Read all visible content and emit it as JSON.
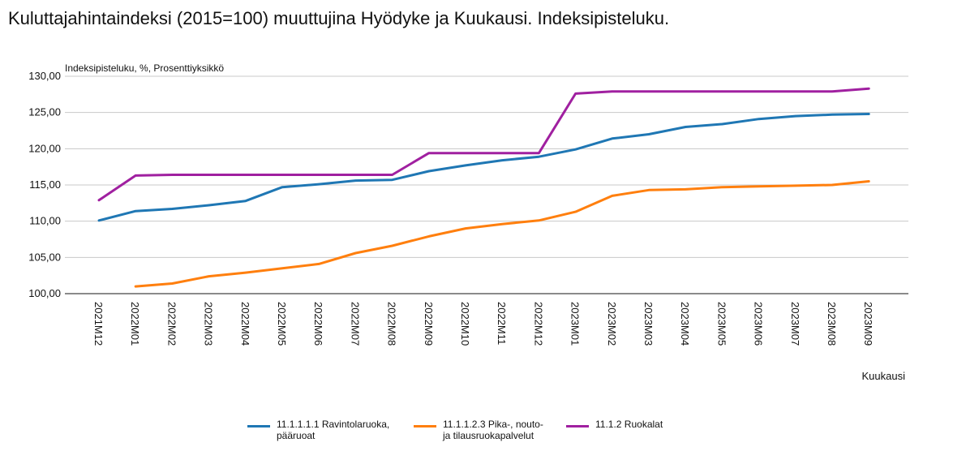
{
  "title": "Kuluttajahintaindeksi (2015=100) muuttujina Hyödyke ja Kuukausi. Indeksipisteluku.",
  "chart_data": {
    "type": "line",
    "ylabel": "Indeksipisteluku, %, Prosenttiyksikkö",
    "xlabel": "Kuukausi",
    "ylim": [
      100,
      130
    ],
    "yticks": [
      100,
      105,
      110,
      115,
      120,
      125,
      130
    ],
    "ytick_labels": [
      "100,00",
      "105,00",
      "110,00",
      "115,00",
      "120,00",
      "125,00",
      "130,00"
    ],
    "grid": true,
    "legend_position": "bottom",
    "categories": [
      "2021M12",
      "2022M01",
      "2022M02",
      "2022M03",
      "2022M04",
      "2022M05",
      "2022M06",
      "2022M07",
      "2022M08",
      "2022M09",
      "2022M10",
      "2022M11",
      "2022M12",
      "2023M01",
      "2023M02",
      "2023M03",
      "2023M04",
      "2023M05",
      "2023M06",
      "2023M07",
      "2023M08",
      "2023M09"
    ],
    "series": [
      {
        "name": "11.1.1.1.1 Ravintolaruoka, pääruoat",
        "legend_lines": [
          "11.1.1.1.1 Ravintolaruoka,",
          "pääruoat"
        ],
        "color": "#1f77b4",
        "values": [
          110.1,
          111.4,
          111.7,
          112.2,
          112.8,
          114.7,
          115.1,
          115.6,
          115.7,
          116.9,
          117.7,
          118.4,
          118.9,
          119.9,
          121.4,
          122.0,
          123.0,
          123.4,
          124.1,
          124.5,
          124.7,
          124.8
        ]
      },
      {
        "name": "11.1.1.2.3 Pika-, nouto- ja tilausruokapalvelut",
        "legend_lines": [
          "11.1.1.2.3 Pika-, nouto-",
          "ja tilausruokapalvelut"
        ],
        "color": "#ff7f0e",
        "values": [
          null,
          101.0,
          101.4,
          102.4,
          102.9,
          103.5,
          104.1,
          105.6,
          106.6,
          107.9,
          109.0,
          109.6,
          110.1,
          111.3,
          113.5,
          114.3,
          114.4,
          114.7,
          114.8,
          114.9,
          115.0,
          115.5
        ]
      },
      {
        "name": "11.1.2 Ruokalat",
        "legend_lines": [
          "11.1.2 Ruokalat"
        ],
        "color": "#a020a0",
        "values": [
          112.9,
          116.3,
          116.4,
          116.4,
          116.4,
          116.4,
          116.4,
          116.4,
          116.4,
          119.4,
          119.4,
          119.4,
          119.4,
          127.6,
          127.9,
          127.9,
          127.9,
          127.9,
          127.9,
          127.9,
          127.9,
          128.3
        ]
      }
    ]
  }
}
